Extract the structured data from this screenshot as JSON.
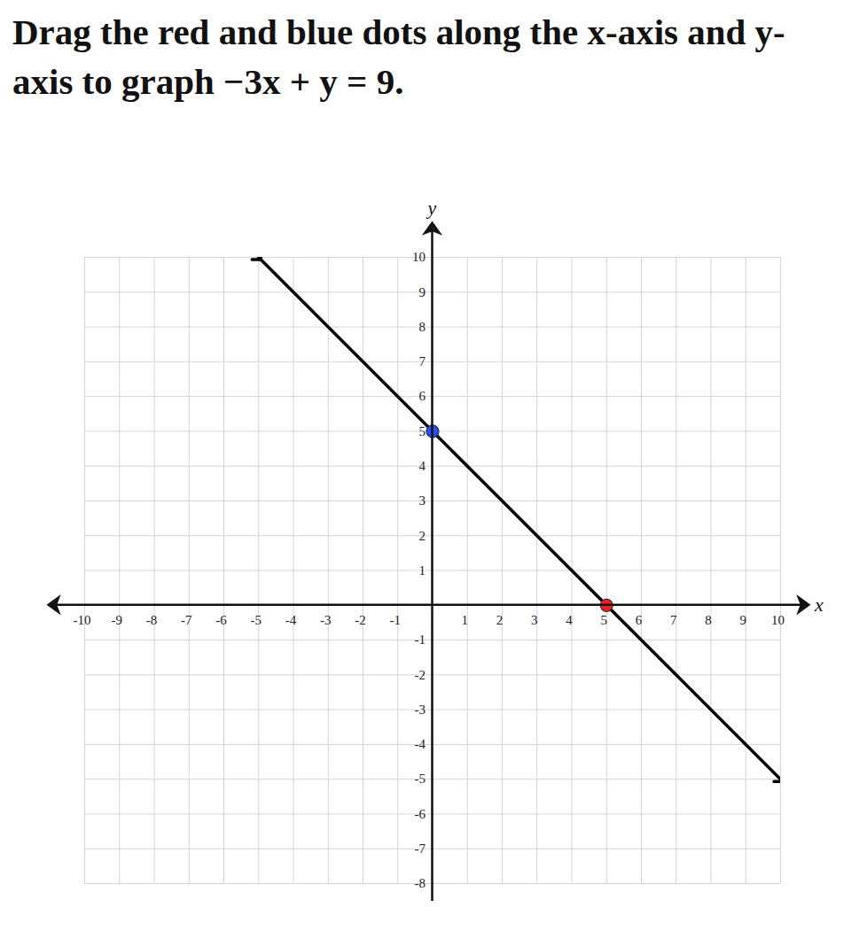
{
  "chart_data": {
    "type": "line",
    "title": "Drag the red and blue dots along the x-axis and y-axis to graph −3x + y = 9.",
    "x_label": "x",
    "y_label": "y",
    "x": [
      -5,
      10
    ],
    "values": [
      10,
      -5
    ],
    "color": "#000000",
    "points": {
      "x": [
        0,
        5
      ],
      "y": [
        5,
        0
      ],
      "colors": [
        "#1f4fff",
        "#ff1a1a"
      ]
    },
    "xlim": [
      -10,
      10
    ],
    "ylim": [
      -8,
      10
    ],
    "xticks": [
      -10,
      -9,
      -8,
      -7,
      -6,
      -5,
      -4,
      -3,
      -2,
      -1,
      1,
      2,
      3,
      4,
      5,
      6,
      7,
      8,
      9,
      10
    ],
    "yticks": [
      -8,
      -7,
      -6,
      -5,
      -4,
      -3,
      -2,
      -1,
      1,
      2,
      3,
      4,
      5,
      6,
      7,
      8,
      9,
      10
    ],
    "grid": true
  }
}
